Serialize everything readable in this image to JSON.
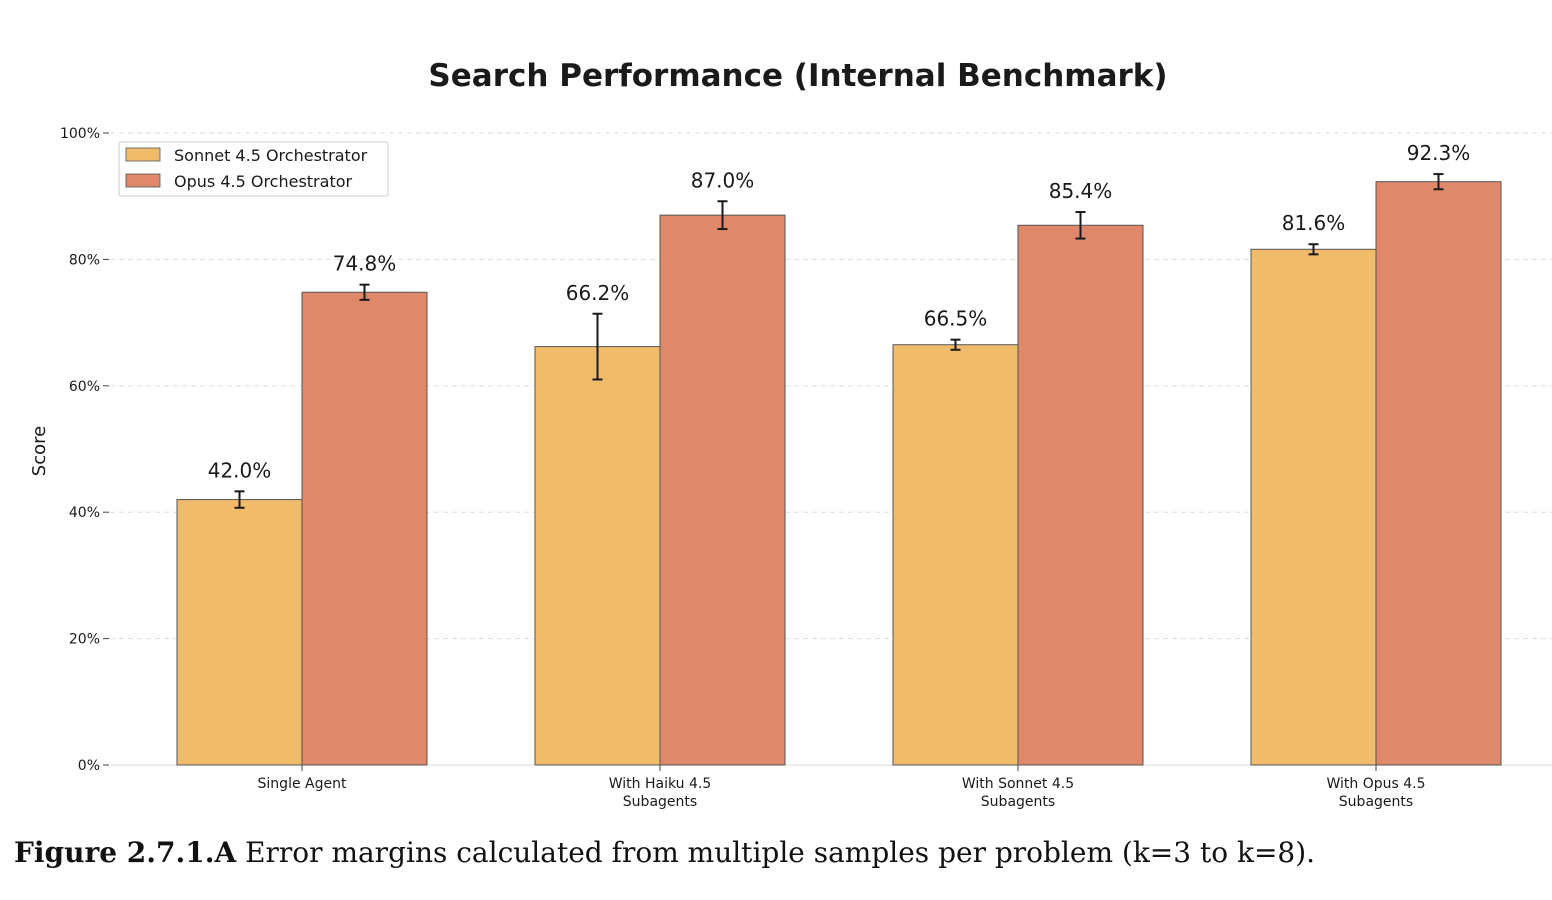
{
  "chart_data": {
    "type": "bar",
    "title": "Search Performance (Internal Benchmark)",
    "ylabel": "Score",
    "xlabel": "",
    "ylim": [
      0,
      100
    ],
    "y_ticks": [
      0,
      20,
      40,
      60,
      80,
      100
    ],
    "y_tick_labels": [
      "0%",
      "20%",
      "40%",
      "60%",
      "80%",
      "100%"
    ],
    "categories": [
      [
        "Single Agent"
      ],
      [
        "With Haiku 4.5",
        "Subagents"
      ],
      [
        "With Sonnet 4.5",
        "Subagents"
      ],
      [
        "With Opus 4.5",
        "Subagents"
      ]
    ],
    "series": [
      {
        "name": "Sonnet 4.5 Orchestrator",
        "color": "#F0BC6C",
        "values": [
          42.0,
          66.2,
          66.5,
          81.6
        ],
        "error": [
          1.3,
          5.2,
          0.8,
          0.8
        ],
        "labels": [
          "42.0%",
          "66.2%",
          "66.5%",
          "81.6%"
        ]
      },
      {
        "name": "Opus 4.5 Orchestrator",
        "color": "#DF896A",
        "values": [
          74.8,
          87.0,
          85.4,
          92.3
        ],
        "error": [
          1.2,
          2.2,
          2.1,
          1.2
        ],
        "labels": [
          "74.8%",
          "87.0%",
          "85.4%",
          "92.3%"
        ]
      }
    ],
    "grid": true,
    "legend_position": "top-left"
  },
  "caption": {
    "label": "Figure 2.7.1.A",
    "text": " Error margins calculated from multiple samples per problem (k=3 to k=8)."
  }
}
